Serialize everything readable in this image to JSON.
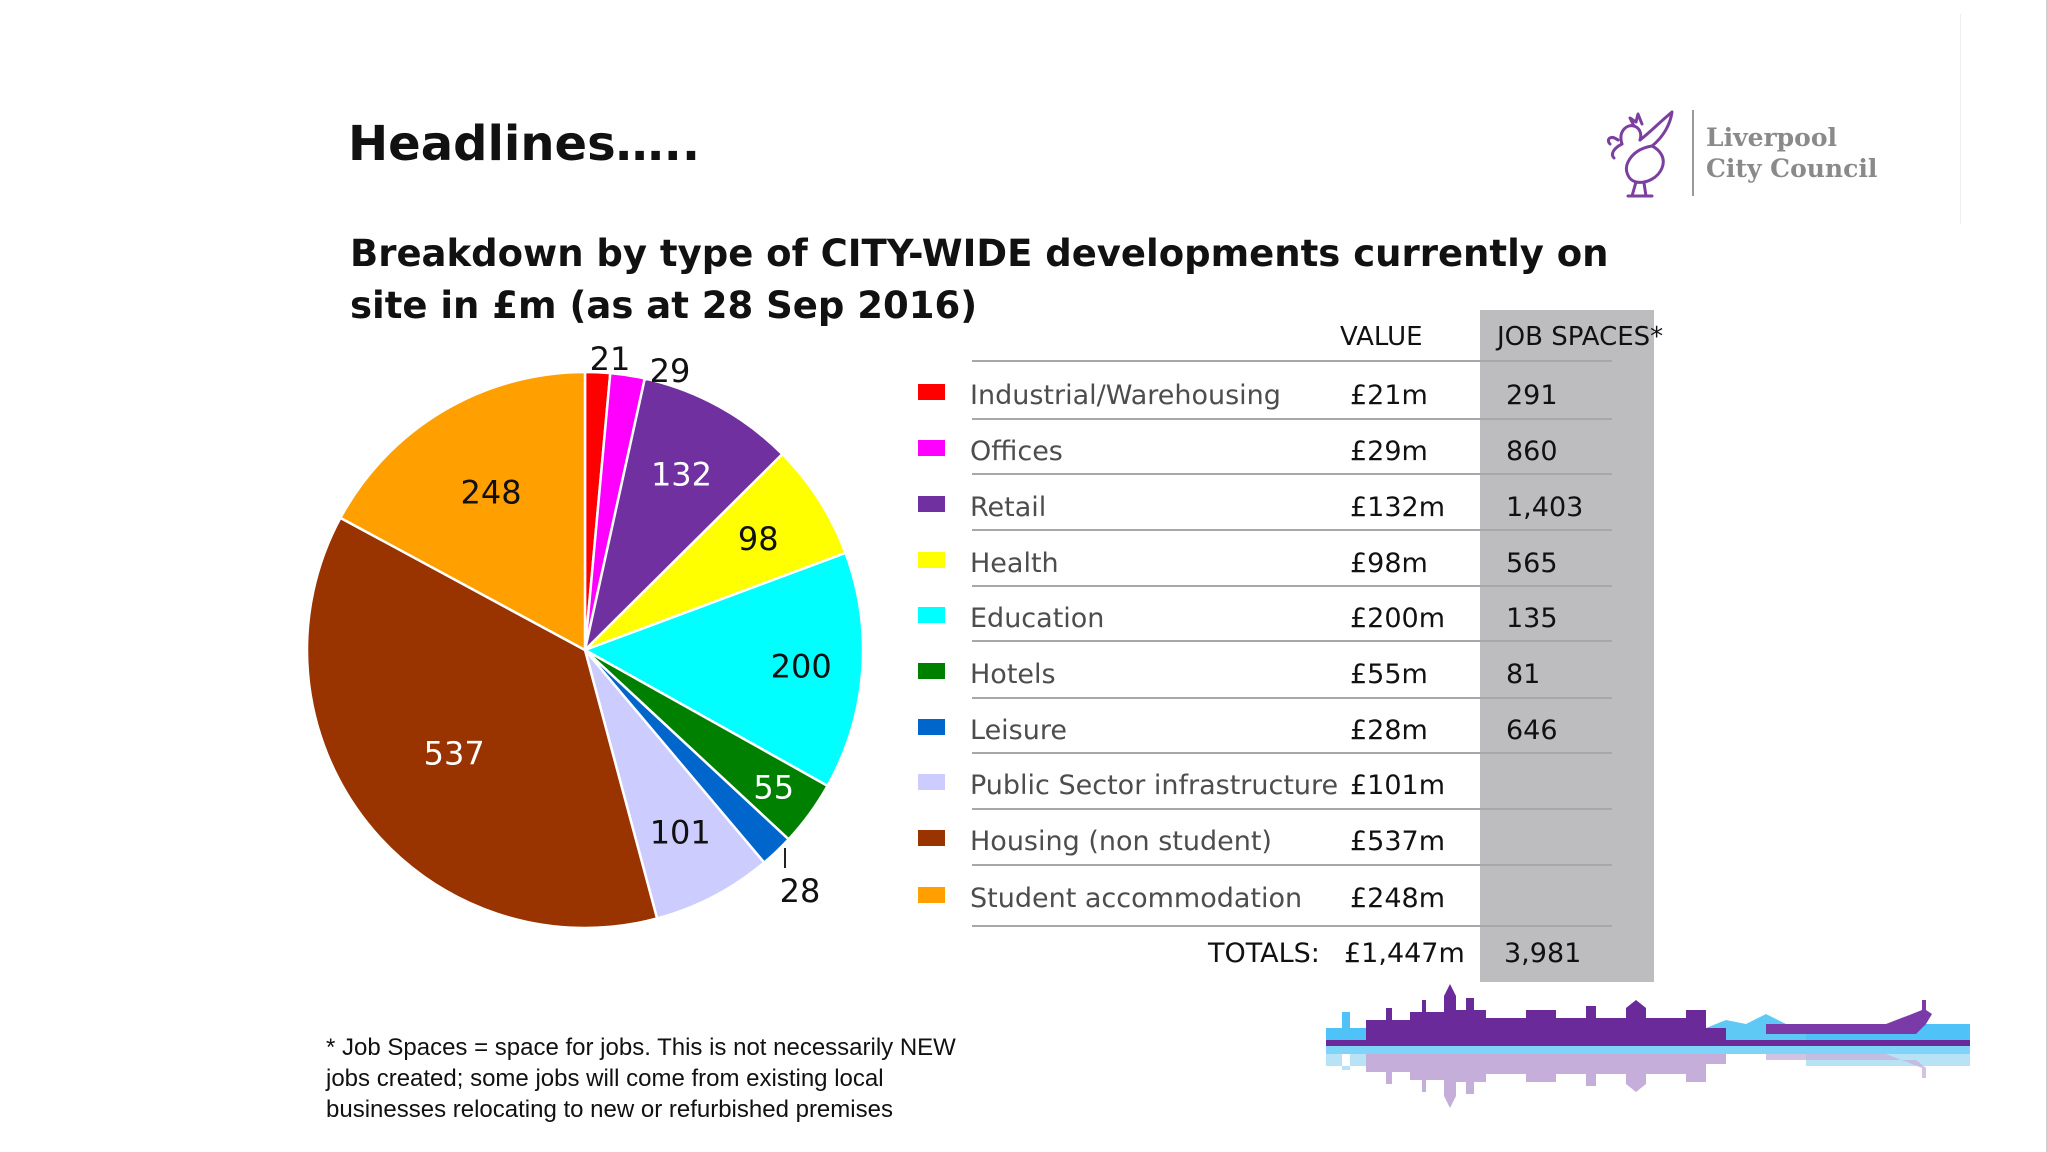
{
  "slide": {
    "title": "Headlines…..",
    "logo_line1": "Liverpool",
    "logo_line2": "City Council",
    "footnote": "* Job Spaces = space for jobs. This is not necessarily NEW jobs created; some jobs will come from existing local businesses relocating to new or refurbished premises"
  },
  "table": {
    "header_value": "VALUE",
    "header_jobs": "JOB SPACES*",
    "rows": [
      {
        "label": "Industrial/Warehousing",
        "value": "£21m",
        "jobs": "291",
        "color": "#ff0000"
      },
      {
        "label": "Offices",
        "value": "£29m",
        "jobs": "860",
        "color": "#ff00ff"
      },
      {
        "label": "Retail",
        "value": "£132m",
        "jobs": "1,403",
        "color": "#7030a0"
      },
      {
        "label": "Health",
        "value": "£98m",
        "jobs": "565",
        "color": "#ffff00"
      },
      {
        "label": "Education",
        "value": "£200m",
        "jobs": "135",
        "color": "#00ffff"
      },
      {
        "label": "Hotels",
        "value": "£55m",
        "jobs": "81",
        "color": "#008000"
      },
      {
        "label": "Leisure",
        "value": "£28m",
        "jobs": "646",
        "color": "#0066cc"
      },
      {
        "label": "Public Sector infrastructure",
        "value": "£101m",
        "jobs": "",
        "color": "#ccccff"
      },
      {
        "label": "Housing (non student)",
        "value": "£537m",
        "jobs": "",
        "color": "#993300"
      },
      {
        "label": "Student accommodation",
        "value": "£248m",
        "jobs": "",
        "color": "#ffa000"
      }
    ],
    "totals_label": "TOTALS:",
    "totals_value": "£1,447m",
    "totals_jobs": "3,981"
  },
  "chart_data": {
    "type": "pie",
    "title": "Breakdown by type of CITY-WIDE developments currently on site in £m (as at 28 Sep 2016)",
    "categories": [
      "Industrial/Warehousing",
      "Offices",
      "Retail",
      "Health",
      "Education",
      "Hotels",
      "Leisure",
      "Public Sector infrastructure",
      "Housing (non student)",
      "Student accommodation"
    ],
    "values": [
      21,
      29,
      132,
      98,
      200,
      55,
      28,
      101,
      537,
      248
    ],
    "data_labels": [
      "21",
      "29",
      "132",
      "98",
      "200",
      "55",
      "28",
      "101",
      "537",
      "248"
    ],
    "colors": [
      "#ff0000",
      "#ff00ff",
      "#7030a0",
      "#ffff00",
      "#00ffff",
      "#008000",
      "#0066cc",
      "#ccccff",
      "#993300",
      "#ffa000"
    ],
    "start_angle_deg": 0,
    "direction": "clockwise",
    "legend": "right"
  }
}
